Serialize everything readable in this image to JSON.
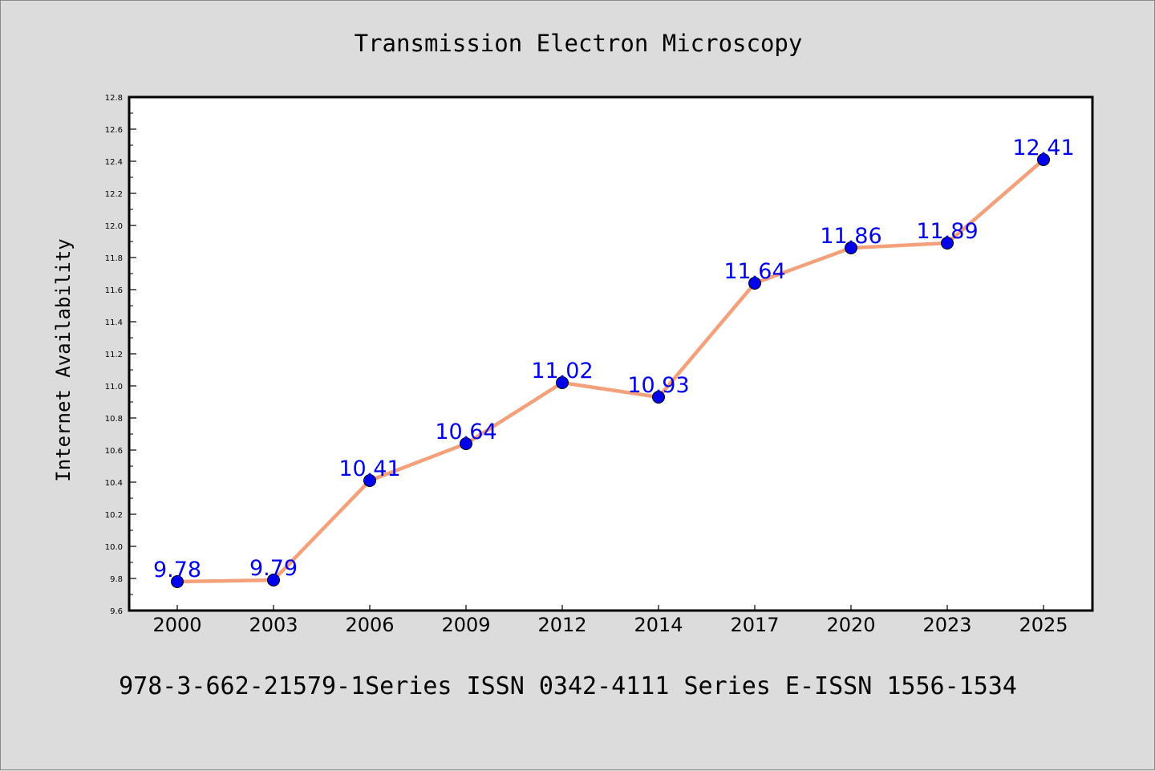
{
  "chart_data": {
    "type": "line",
    "title": "Transmission Electron Microscopy",
    "xlabel": "",
    "ylabel": "Internet Availability",
    "categories": [
      "2000",
      "2003",
      "2006",
      "2009",
      "2012",
      "2014",
      "2017",
      "2020",
      "2023",
      "2025"
    ],
    "series": [
      {
        "values": [
          9.78,
          9.79,
          10.41,
          10.64,
          11.02,
          10.93,
          11.64,
          11.86,
          11.89,
          12.41
        ],
        "data_labels": [
          "9.78",
          "9.79",
          "10.41",
          "10.64",
          "11.02",
          "10.93",
          "11.64",
          "11.86",
          "11.89",
          "12.41"
        ],
        "line_color": "#f4a07a",
        "marker_color": "#0000ee",
        "label_color": "#0000ee"
      }
    ],
    "ylim": [
      9.6,
      12.8
    ],
    "yticks": [
      "9.6",
      "9.8",
      "10.0",
      "10.2",
      "10.4",
      "10.6",
      "10.8",
      "11.0",
      "11.2",
      "11.4",
      "11.6",
      "11.8",
      "12.0",
      "12.2",
      "12.4",
      "12.6",
      "12.8"
    ],
    "grid": false,
    "legend": "none"
  },
  "footer": {
    "text": "978-3-662-21579-1Series ISSN 0342-4111 Series E-ISSN 1556-1534"
  },
  "colors": {
    "background": "#dcdcdc",
    "plot_background": "#ffffff",
    "axis": "#000000",
    "text": "#000000"
  }
}
